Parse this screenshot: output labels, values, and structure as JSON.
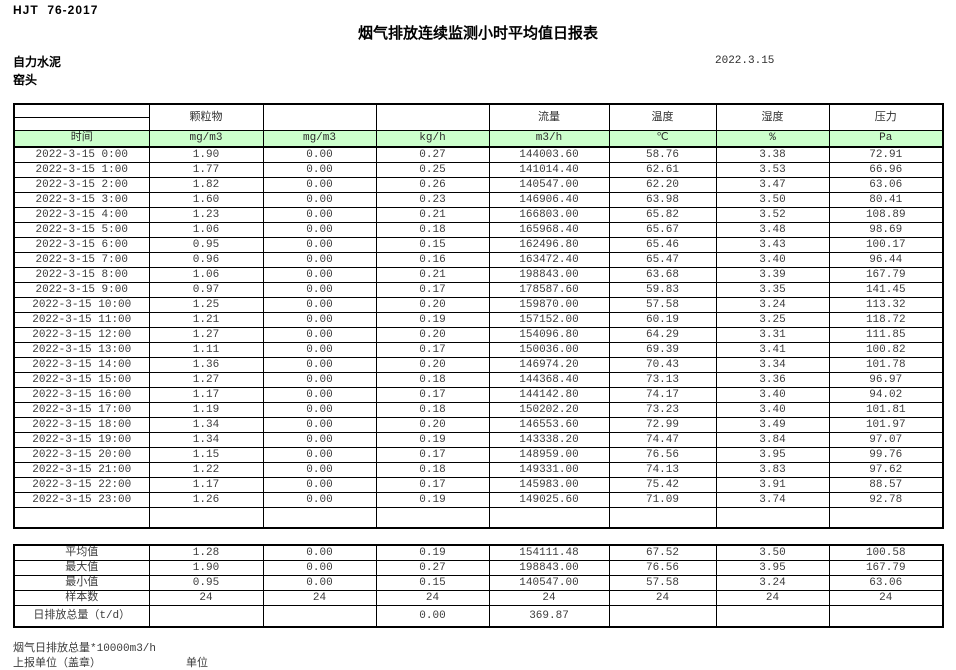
{
  "page": {
    "standard_code": "HJT  76-2017",
    "title": "烟气排放连续监测小时平均值日报表",
    "company": "自力水泥",
    "report_date": "2022.3.15",
    "monitor_point": "窑头"
  },
  "colors": {
    "header_green": "#ccffcc",
    "border": "#000000",
    "text": "#3b3b3b"
  },
  "table": {
    "group_headers": [
      "",
      "颗粒物",
      "",
      "",
      "流量",
      "温度",
      "湿度",
      "压力"
    ],
    "unit_headers": [
      "时间",
      "mg/m3",
      "mg/m3",
      "kg/h",
      "m3/h",
      "℃",
      "%",
      "Pa"
    ],
    "rows": [
      [
        "2022-3-15 0:00",
        "1.90",
        "0.00",
        "0.27",
        "144003.60",
        "58.76",
        "3.38",
        "72.91"
      ],
      [
        "2022-3-15 1:00",
        "1.77",
        "0.00",
        "0.25",
        "141014.40",
        "62.61",
        "3.53",
        "66.96"
      ],
      [
        "2022-3-15 2:00",
        "1.82",
        "0.00",
        "0.26",
        "140547.00",
        "62.20",
        "3.47",
        "63.06"
      ],
      [
        "2022-3-15 3:00",
        "1.60",
        "0.00",
        "0.23",
        "146906.40",
        "63.98",
        "3.50",
        "80.41"
      ],
      [
        "2022-3-15 4:00",
        "1.23",
        "0.00",
        "0.21",
        "166803.00",
        "65.82",
        "3.52",
        "108.89"
      ],
      [
        "2022-3-15 5:00",
        "1.06",
        "0.00",
        "0.18",
        "165968.40",
        "65.67",
        "3.48",
        "98.69"
      ],
      [
        "2022-3-15 6:00",
        "0.95",
        "0.00",
        "0.15",
        "162496.80",
        "65.46",
        "3.43",
        "100.17"
      ],
      [
        "2022-3-15 7:00",
        "0.96",
        "0.00",
        "0.16",
        "163472.40",
        "65.47",
        "3.40",
        "96.44"
      ],
      [
        "2022-3-15 8:00",
        "1.06",
        "0.00",
        "0.21",
        "198843.00",
        "63.68",
        "3.39",
        "167.79"
      ],
      [
        "2022-3-15 9:00",
        "0.97",
        "0.00",
        "0.17",
        "178587.60",
        "59.83",
        "3.35",
        "141.45"
      ],
      [
        "2022-3-15 10:00",
        "1.25",
        "0.00",
        "0.20",
        "159870.00",
        "57.58",
        "3.24",
        "113.32"
      ],
      [
        "2022-3-15 11:00",
        "1.21",
        "0.00",
        "0.19",
        "157152.00",
        "60.19",
        "3.25",
        "118.72"
      ],
      [
        "2022-3-15 12:00",
        "1.27",
        "0.00",
        "0.20",
        "154096.80",
        "64.29",
        "3.31",
        "111.85"
      ],
      [
        "2022-3-15 13:00",
        "1.11",
        "0.00",
        "0.17",
        "150036.00",
        "69.39",
        "3.41",
        "100.82"
      ],
      [
        "2022-3-15 14:00",
        "1.36",
        "0.00",
        "0.20",
        "146974.20",
        "70.43",
        "3.34",
        "101.78"
      ],
      [
        "2022-3-15 15:00",
        "1.27",
        "0.00",
        "0.18",
        "144368.40",
        "73.13",
        "3.36",
        "96.97"
      ],
      [
        "2022-3-15 16:00",
        "1.17",
        "0.00",
        "0.17",
        "144142.80",
        "74.17",
        "3.40",
        "94.02"
      ],
      [
        "2022-3-15 17:00",
        "1.19",
        "0.00",
        "0.18",
        "150202.20",
        "73.23",
        "3.40",
        "101.81"
      ],
      [
        "2022-3-15 18:00",
        "1.34",
        "0.00",
        "0.20",
        "146553.60",
        "72.99",
        "3.49",
        "101.97"
      ],
      [
        "2022-3-15 19:00",
        "1.34",
        "0.00",
        "0.19",
        "143338.20",
        "74.47",
        "3.84",
        "97.07"
      ],
      [
        "2022-3-15 20:00",
        "1.15",
        "0.00",
        "0.17",
        "148959.00",
        "76.56",
        "3.95",
        "99.76"
      ],
      [
        "2022-3-15 21:00",
        "1.22",
        "0.00",
        "0.18",
        "149331.00",
        "74.13",
        "3.83",
        "97.62"
      ],
      [
        "2022-3-15 22:00",
        "1.17",
        "0.00",
        "0.17",
        "145983.00",
        "75.42",
        "3.91",
        "88.57"
      ],
      [
        "2022-3-15 23:00",
        "1.26",
        "0.00",
        "0.19",
        "149025.60",
        "71.09",
        "3.74",
        "92.78"
      ]
    ],
    "summary_rows": [
      [
        "平均值",
        "1.28",
        "0.00",
        "0.19",
        "154111.48",
        "67.52",
        "3.50",
        "100.58"
      ],
      [
        "最大值",
        "1.90",
        "0.00",
        "0.27",
        "198843.00",
        "76.56",
        "3.95",
        "167.79"
      ],
      [
        "最小值",
        "0.95",
        "0.00",
        "0.15",
        "140547.00",
        "57.58",
        "3.24",
        "63.06"
      ],
      [
        "样本数",
        "24",
        "24",
        "24",
        "24",
        "24",
        "24",
        "24"
      ],
      [
        "日排放总量（t/d）",
        "",
        "",
        "0.00",
        "369.87",
        "",
        "",
        ""
      ]
    ]
  },
  "footer": {
    "note": "烟气日排放总量*10000m3/h",
    "report_unit_label": "上报单位（盖章）",
    "unit_label": "单位"
  }
}
